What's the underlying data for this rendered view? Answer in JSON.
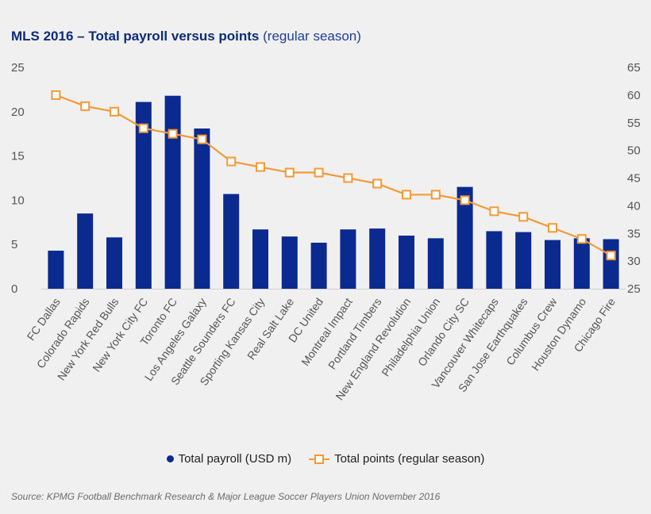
{
  "colors": {
    "bar": "#0a2a8f",
    "line": "#f39a36",
    "marker_fill": "#ffffff",
    "tick_text": "#555555",
    "title": "#0d2b7a"
  },
  "header": {
    "title_bold": "MLS 2016 – Total payroll versus points",
    "title_sub": "(regular season)"
  },
  "legend": {
    "payroll_label": "Total payroll (USD m)",
    "points_label": "Total points (regular season)"
  },
  "footer": {
    "source": "Source: KPMG Football Benchmark Research & Major League Soccer Players Union November 2016"
  },
  "chart_data": {
    "type": "bar+line",
    "title": "MLS 2016 – Total payroll versus points (regular season)",
    "categories": [
      "FC Dallas",
      "Colorado Rapids",
      "New York Red Bulls",
      "New York City FC",
      "Toronto FC",
      "Los Angeles Galaxy",
      "Seattle Sounders FC",
      "Sporting Kansas City",
      "Real Salt Lake",
      "DC United",
      "Montreal Impact",
      "Portland Timbers",
      "New England Revolution",
      "Philadelphia Union",
      "Orlando City SC",
      "Vancouver Whitecaps",
      "San Jose Earthquakes",
      "Columbus Crew",
      "Houston Dynamo",
      "Chicago Fire"
    ],
    "series": [
      {
        "name": "Total payroll (USD m)",
        "type": "bar",
        "axis": "left",
        "values": [
          4.3,
          8.5,
          5.8,
          21.1,
          21.8,
          18.1,
          10.7,
          6.7,
          5.9,
          5.2,
          6.7,
          6.8,
          6.0,
          5.7,
          11.5,
          6.5,
          6.4,
          5.5,
          5.7,
          5.6
        ]
      },
      {
        "name": "Total points (regular season)",
        "type": "line",
        "axis": "right",
        "values": [
          60,
          58,
          57,
          54,
          53,
          52,
          48,
          47,
          46,
          46,
          45,
          44,
          42,
          42,
          41,
          39,
          38,
          36,
          34,
          31
        ]
      }
    ],
    "y_left": {
      "min": 0,
      "max": 25,
      "ticks": [
        0,
        5,
        10,
        15,
        20,
        25
      ]
    },
    "y_right": {
      "min": 25,
      "max": 65,
      "ticks": [
        25,
        30,
        35,
        40,
        45,
        50,
        55,
        60,
        65
      ]
    },
    "grid": false,
    "legend_position": "bottom"
  }
}
